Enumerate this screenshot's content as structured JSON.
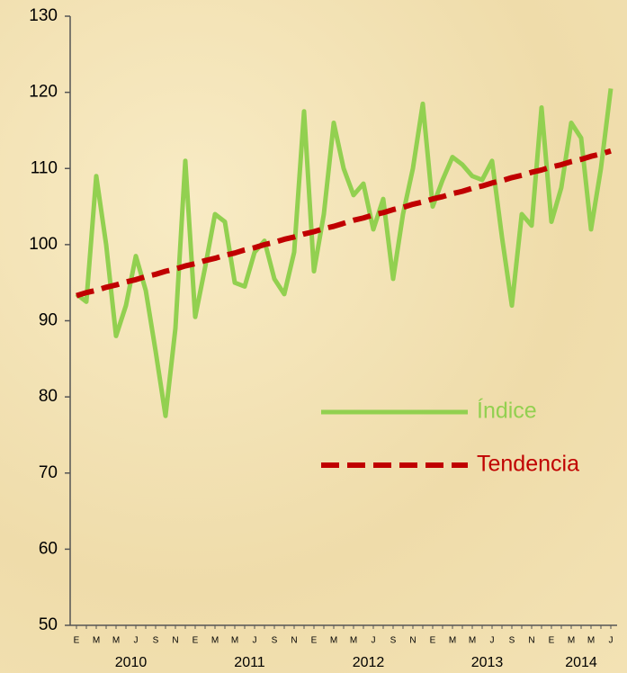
{
  "chart_data": {
    "type": "line",
    "categories": [
      "E",
      null,
      "M",
      null,
      "M",
      null,
      "J",
      null,
      "S",
      null,
      "N",
      null,
      "E",
      null,
      "M",
      null,
      "M",
      null,
      "J",
      null,
      "S",
      null,
      "N",
      null,
      "E",
      null,
      "M",
      null,
      "M",
      null,
      "J",
      null,
      "S",
      null,
      "N",
      null,
      "E",
      null,
      "M",
      null,
      "M",
      null,
      "J",
      null,
      "S",
      null,
      "N",
      null,
      "E",
      null,
      "M",
      null,
      "M",
      null,
      "J"
    ],
    "years": [
      "2010",
      "2011",
      "2012",
      "2013",
      "2014"
    ],
    "series": [
      {
        "name": "Índice",
        "color": "#92d050",
        "dash": false,
        "values": [
          93.5,
          92.5,
          109,
          100,
          88,
          92,
          98.5,
          94,
          86,
          77.5,
          89,
          111,
          90.5,
          97,
          104,
          103,
          95,
          94.5,
          99,
          100.5,
          95.5,
          93.5,
          99,
          117.5,
          96.5,
          104,
          116,
          110,
          106.5,
          108,
          102,
          106,
          95.5,
          104,
          110,
          118.5,
          105,
          108.5,
          111.5,
          110.5,
          109,
          108.5,
          111,
          101,
          92,
          104,
          102.5,
          118,
          103,
          107.5,
          116,
          114,
          102,
          110,
          120.5
        ]
      },
      {
        "name": "Tendencia",
        "color": "#c00000",
        "dash": true,
        "values": [
          93.3,
          93.7,
          94.0,
          94.4,
          94.7,
          95.1,
          95.4,
          95.8,
          96.1,
          96.5,
          96.8,
          97.2,
          97.5,
          97.9,
          98.2,
          98.6,
          98.9,
          99.3,
          99.6,
          100.0,
          100.3,
          100.7,
          101.0,
          101.4,
          101.7,
          102.1,
          102.4,
          102.8,
          103.2,
          103.5,
          103.9,
          104.2,
          104.6,
          104.9,
          105.3,
          105.6,
          106.0,
          106.3,
          106.7,
          107.0,
          107.4,
          107.7,
          108.1,
          108.4,
          108.8,
          109.1,
          109.5,
          109.8,
          110.2,
          110.5,
          110.9,
          111.2,
          111.6,
          111.9,
          112.3
        ]
      }
    ],
    "ylim": [
      50,
      130
    ],
    "yticks": [
      50,
      60,
      70,
      80,
      90,
      100,
      110,
      120,
      130
    ],
    "grid": false,
    "legend": "right"
  }
}
